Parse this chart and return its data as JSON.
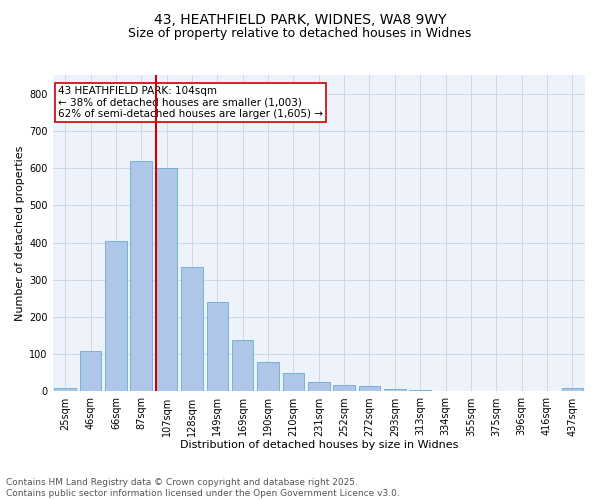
{
  "title1": "43, HEATHFIELD PARK, WIDNES, WA8 9WY",
  "title2": "Size of property relative to detached houses in Widnes",
  "xlabel": "Distribution of detached houses by size in Widnes",
  "ylabel": "Number of detached properties",
  "categories": [
    "25sqm",
    "46sqm",
    "66sqm",
    "87sqm",
    "107sqm",
    "128sqm",
    "149sqm",
    "169sqm",
    "190sqm",
    "210sqm",
    "231sqm",
    "252sqm",
    "272sqm",
    "293sqm",
    "313sqm",
    "334sqm",
    "355sqm",
    "375sqm",
    "396sqm",
    "416sqm",
    "437sqm"
  ],
  "values": [
    8,
    110,
    405,
    620,
    600,
    335,
    240,
    138,
    80,
    50,
    25,
    18,
    15,
    7,
    3,
    0,
    0,
    0,
    0,
    0,
    8
  ],
  "bar_color": "#aec6e8",
  "bar_edge_color": "#6aaad4",
  "vline_color": "#cc0000",
  "annotation_text": "43 HEATHFIELD PARK: 104sqm\n← 38% of detached houses are smaller (1,003)\n62% of semi-detached houses are larger (1,605) →",
  "annotation_box_color": "#ffffff",
  "annotation_box_edge": "#cc0000",
  "ylim": [
    0,
    850
  ],
  "yticks": [
    0,
    100,
    200,
    300,
    400,
    500,
    600,
    700,
    800
  ],
  "grid_color": "#d0d8e8",
  "background_color": "#edf2fb",
  "footer_line1": "Contains HM Land Registry data © Crown copyright and database right 2025.",
  "footer_line2": "Contains public sector information licensed under the Open Government Licence v3.0.",
  "title_fontsize": 10,
  "subtitle_fontsize": 9,
  "axis_label_fontsize": 8,
  "tick_fontsize": 7,
  "annotation_fontsize": 7.5,
  "footer_fontsize": 6.5
}
